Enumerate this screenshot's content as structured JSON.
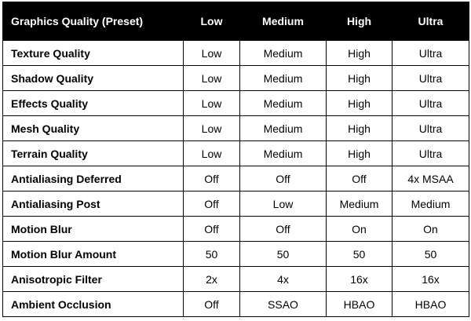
{
  "table": {
    "columns": [
      "Graphics Quality  (Preset)",
      "Low",
      "Medium",
      "High",
      "Ultra"
    ],
    "rows": [
      [
        "Texture Quality",
        "Low",
        "Medium",
        "High",
        "Ultra"
      ],
      [
        "Shadow Quality",
        "Low",
        "Medium",
        "High",
        "Ultra"
      ],
      [
        "Effects Quality",
        "Low",
        "Medium",
        "High",
        "Ultra"
      ],
      [
        "Mesh Quality",
        "Low",
        "Medium",
        "High",
        "Ultra"
      ],
      [
        "Terrain Quality",
        "Low",
        "Medium",
        "High",
        "Ultra"
      ],
      [
        "Antialiasing Deferred",
        "Off",
        "Off",
        "Off",
        "4x MSAA"
      ],
      [
        "Antialiasing Post",
        "Off",
        "Low",
        "Medium",
        "Medium"
      ],
      [
        "Motion Blur",
        "Off",
        "Off",
        "On",
        "On"
      ],
      [
        "Motion Blur Amount",
        "50",
        "50",
        "50",
        "50"
      ],
      [
        "Anisotropic Filter",
        "2x",
        "4x",
        "16x",
        "16x"
      ],
      [
        "Ambient Occlusion",
        "Off",
        "SSAO",
        "HBAO",
        "HBAO"
      ]
    ]
  }
}
